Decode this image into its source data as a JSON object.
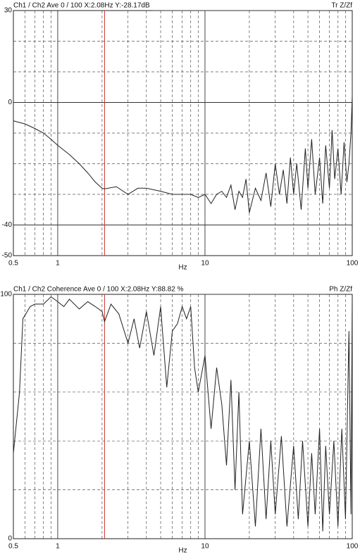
{
  "chart_data": [
    {
      "type": "line",
      "header": "Ch1 / Ch2   Ave 0 / 100   X:2.08Hz   Y:-28.17dB",
      "right_label": "Tr Z/Zf",
      "xlabel": "Hz",
      "log_x": true,
      "color": "#222222",
      "cursor_color": "#d03030",
      "cursor_x": 2.08,
      "xlim": [
        0.5,
        100
      ],
      "xticks": [
        0.5,
        1,
        10,
        100
      ],
      "xgrid": [
        0.6,
        0.7,
        0.8,
        0.9,
        2,
        3,
        4,
        5,
        6,
        7,
        8,
        9,
        20,
        30,
        40,
        50,
        60,
        70,
        80,
        90
      ],
      "ylim": [
        -50,
        30
      ],
      "yticks": [
        -50,
        -40,
        0,
        30
      ],
      "ygrid": [
        -30,
        -20,
        -10,
        10,
        20
      ],
      "x": [
        0.5,
        0.6,
        0.7,
        0.8,
        0.9,
        1.0,
        1.2,
        1.4,
        1.6,
        1.8,
        2.0,
        2.08,
        2.5,
        3,
        3.5,
        4,
        5,
        6,
        7,
        8,
        9,
        10,
        11,
        12,
        13,
        14,
        15,
        16,
        17,
        18,
        19,
        20,
        22,
        24,
        26,
        28,
        30,
        32,
        34,
        36,
        38,
        40,
        42,
        45,
        48,
        50,
        53,
        56,
        60,
        63,
        66,
        70,
        73,
        76,
        80,
        84,
        88,
        92,
        95,
        98,
        100
      ],
      "values": [
        -6,
        -7,
        -8.5,
        -10,
        -12,
        -14,
        -17,
        -20,
        -23,
        -26,
        -28,
        -28.2,
        -27.5,
        -30,
        -28,
        -28,
        -29,
        -30,
        -30,
        -30,
        -31,
        -30,
        -33,
        -30,
        -29,
        -31,
        -27,
        -35,
        -29,
        -31,
        -25,
        -36,
        -28,
        -32,
        -23,
        -34,
        -20,
        -30,
        -22,
        -33,
        -18,
        -30,
        -20,
        -35,
        -15,
        -28,
        -12,
        -30,
        -18,
        -33,
        -14,
        -28,
        -9,
        -25,
        -15,
        -30,
        -13,
        -26,
        -20,
        -10,
        2
      ]
    },
    {
      "type": "line",
      "header": "Ch1 / Ch2   Coherence Ave 0 / 100   X:2.08Hz   Y:88.82 %",
      "right_label": "Ph Z/Zf",
      "xlabel": "Hz",
      "log_x": true,
      "color": "#222222",
      "cursor_color": "#d03030",
      "cursor_x": 2.08,
      "xlim": [
        0.5,
        100
      ],
      "xticks": [
        0.5,
        1,
        10,
        100
      ],
      "xgrid": [
        0.6,
        0.7,
        0.8,
        0.9,
        2,
        3,
        4,
        5,
        6,
        7,
        8,
        9,
        20,
        30,
        40,
        50,
        60,
        70,
        80,
        90
      ],
      "ylim": [
        0,
        100
      ],
      "yticks": [
        0,
        100
      ],
      "ygrid": [
        20,
        40,
        60,
        80
      ],
      "x": [
        0.5,
        0.55,
        0.58,
        0.65,
        0.7,
        0.8,
        0.9,
        1.0,
        1.1,
        1.2,
        1.4,
        1.6,
        1.8,
        2.0,
        2.08,
        2.3,
        2.6,
        3.0,
        3.3,
        3.6,
        4,
        4.5,
        5,
        5.5,
        6,
        6.5,
        7,
        7.5,
        8,
        8.5,
        9,
        10,
        11,
        12,
        13,
        14,
        15,
        16,
        17,
        18,
        20,
        22,
        24,
        26,
        28,
        30,
        33,
        36,
        40,
        43,
        46,
        50,
        53,
        56,
        60,
        63,
        66,
        70,
        75,
        80,
        85,
        90,
        95,
        98,
        100
      ],
      "values": [
        35,
        60,
        90,
        95,
        96,
        96,
        99,
        97,
        95,
        98,
        94,
        97,
        95,
        93,
        88.82,
        96,
        92,
        80,
        90,
        78,
        93,
        75,
        95,
        62,
        85,
        88,
        95,
        90,
        95,
        70,
        60,
        75,
        45,
        70,
        55,
        30,
        65,
        20,
        60,
        10,
        40,
        5,
        45,
        8,
        40,
        10,
        42,
        5,
        38,
        8,
        40,
        5,
        35,
        10,
        45,
        3,
        38,
        10,
        40,
        5,
        45,
        8,
        85,
        10,
        100
      ]
    }
  ]
}
